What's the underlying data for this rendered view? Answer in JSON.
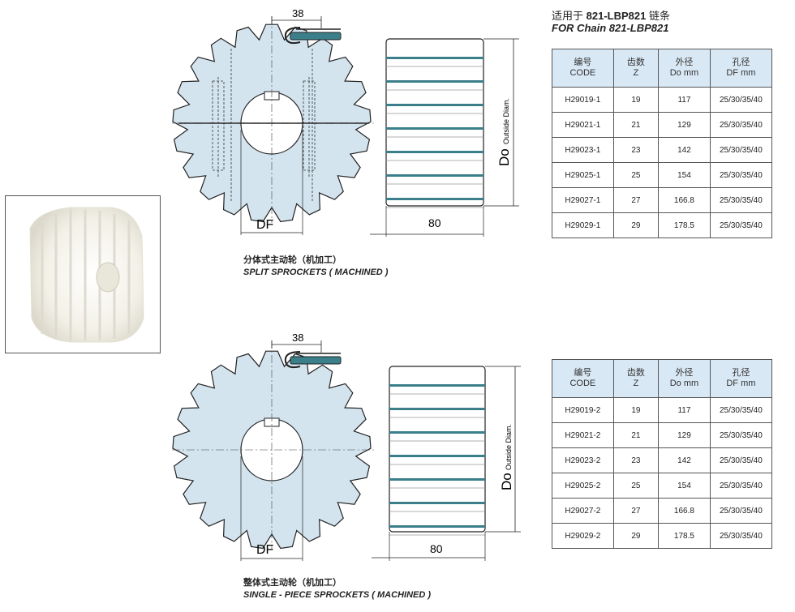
{
  "heading": {
    "cn_prefix": "适用于 ",
    "chain_code": "821-LBP821",
    "cn_suffix": " 链条",
    "en": "FOR Chain 821-LBP821"
  },
  "table_headers": {
    "code_cn": "编号",
    "code_en": "CODE",
    "teeth_cn": "齿数",
    "teeth_en": "Z",
    "od_cn": "外径",
    "od_en": "Do mm",
    "bore_cn": "孔径",
    "bore_en": "DF mm"
  },
  "split_table": [
    {
      "code": "H29019-1",
      "z": "19",
      "do": "117",
      "df": "25/30/35/40"
    },
    {
      "code": "H29021-1",
      "z": "21",
      "do": "129",
      "df": "25/30/35/40"
    },
    {
      "code": "H29023-1",
      "z": "23",
      "do": "142",
      "df": "25/30/35/40"
    },
    {
      "code": "H29025-1",
      "z": "25",
      "do": "154",
      "df": "25/30/35/40"
    },
    {
      "code": "H29027-1",
      "z": "27",
      "do": "166.8",
      "df": "25/30/35/40"
    },
    {
      "code": "H29029-1",
      "z": "29",
      "do": "178.5",
      "df": "25/30/35/40"
    }
  ],
  "single_table": [
    {
      "code": "H29019-2",
      "z": "19",
      "do": "117",
      "df": "25/30/35/40"
    },
    {
      "code": "H29021-2",
      "z": "21",
      "do": "129",
      "df": "25/30/35/40"
    },
    {
      "code": "H29023-2",
      "z": "23",
      "do": "142",
      "df": "25/30/35/40"
    },
    {
      "code": "H29025-2",
      "z": "25",
      "do": "154",
      "df": "25/30/35/40"
    },
    {
      "code": "H29027-2",
      "z": "27",
      "do": "166.8",
      "df": "25/30/35/40"
    },
    {
      "code": "H29029-2",
      "z": "29",
      "do": "178.5",
      "df": "25/30/35/40"
    }
  ],
  "drawing_labels": {
    "dim_38": "38",
    "dim_80": "80",
    "df": "DF",
    "do": "Do",
    "outside_diam": "Outside Diam."
  },
  "split_caption": {
    "cn": "分体式主动轮（机加工）",
    "en": "SPLIT SPROCKETS ( MACHINED )"
  },
  "single_caption": {
    "cn": "整体式主动轮（机加工）",
    "en": "SINGLE - PIECE SPROCKETS ( MACHINED )"
  },
  "colors": {
    "sprocket_fill": "#d3e4ef",
    "table_header": "#d9e8f5",
    "chain_accent": "#3b7f8a"
  }
}
